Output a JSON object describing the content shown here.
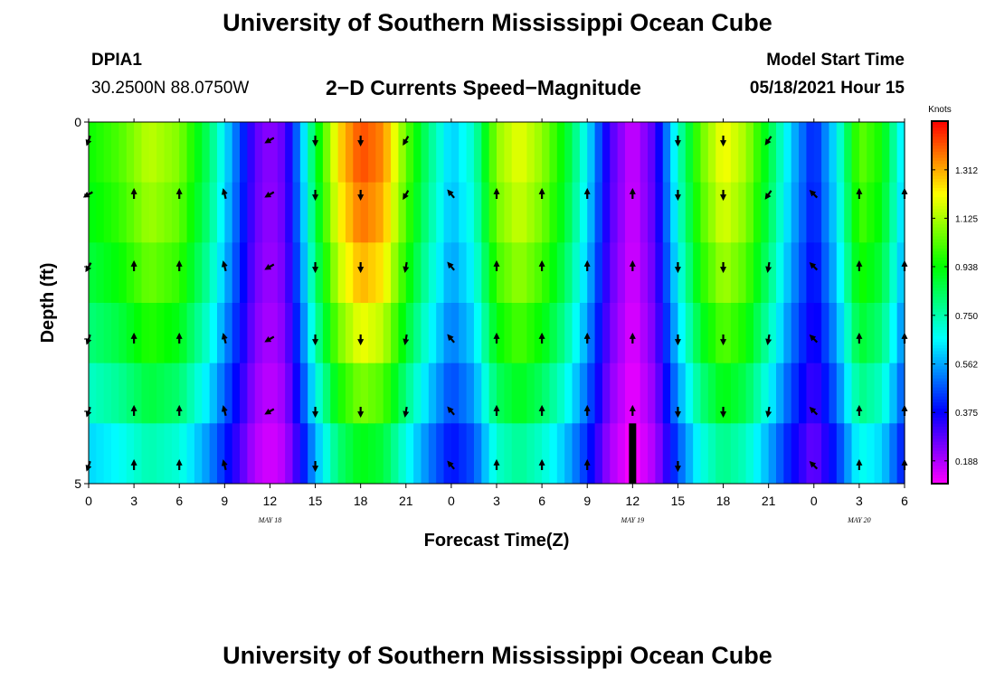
{
  "header": {
    "title": "University of Southern Mississippi Ocean Cube",
    "station": "DPIA1",
    "coords": "30.2500N  88.0750W",
    "subtitle": "2−D Currents Speed−Magnitude",
    "start_label": "Model Start Time",
    "start_value": "05/18/2021 Hour 15"
  },
  "footer": {
    "title": "University of Southern Mississippi Ocean Cube"
  },
  "chart_data": {
    "type": "heatmap",
    "title": "2-D Currents Speed-Magnitude",
    "xlabel": "Forecast Time(Z)",
    "ylabel": "Depth (ft)",
    "x_hours": [
      0,
      3,
      6,
      9,
      12,
      15,
      18,
      21,
      24,
      27,
      30,
      33,
      36,
      39,
      42,
      45,
      48,
      51,
      54
    ],
    "x_tick_labels": [
      "0",
      "3",
      "6",
      "9",
      "12",
      "15",
      "18",
      "21",
      "0",
      "3",
      "6",
      "9",
      "12",
      "15",
      "18",
      "21",
      "0",
      "3",
      "6"
    ],
    "x_range": [
      0,
      54
    ],
    "date_labels": [
      {
        "text": "MAY 18",
        "hour": 12
      },
      {
        "text": "MAY 19",
        "hour": 36
      },
      {
        "text": "MAY 20",
        "hour": 51
      }
    ],
    "y_range": [
      0,
      5
    ],
    "y_tick_labels": [
      {
        "value": 0,
        "label": "0"
      },
      {
        "value": 5,
        "label": "5"
      }
    ],
    "depth_levels": [
      0.25,
      1.0,
      2.0,
      3.0,
      4.0,
      4.75
    ],
    "model_start_marker_hour": 36,
    "colorbar": {
      "unit": "Knots",
      "min": 0.1,
      "max": 1.5,
      "tick_values": [
        1.312,
        1.125,
        0.938,
        0.75,
        0.562,
        0.375,
        0.188
      ],
      "tick_labels": [
        "1.312",
        "1.125",
        "0.938",
        "0.750",
        "0.562",
        "0.375",
        "0.188"
      ]
    },
    "speed_profile_knots": [
      {
        "hour": 0,
        "speed": 0.95
      },
      {
        "hour": 2,
        "speed": 1.02
      },
      {
        "hour": 4,
        "speed": 1.15
      },
      {
        "hour": 6,
        "speed": 1.08
      },
      {
        "hour": 8,
        "speed": 0.82
      },
      {
        "hour": 9.5,
        "speed": 0.55
      },
      {
        "hour": 11,
        "speed": 0.28
      },
      {
        "hour": 12,
        "speed": 0.22
      },
      {
        "hour": 13,
        "speed": 0.28
      },
      {
        "hour": 14,
        "speed": 0.55
      },
      {
        "hour": 15,
        "speed": 0.88
      },
      {
        "hour": 16.5,
        "speed": 1.25
      },
      {
        "hour": 18,
        "speed": 1.42
      },
      {
        "hour": 19.5,
        "speed": 1.35
      },
      {
        "hour": 21,
        "speed": 1.05
      },
      {
        "hour": 22.5,
        "speed": 0.8
      },
      {
        "hour": 24,
        "speed": 0.6
      },
      {
        "hour": 25.5,
        "speed": 0.72
      },
      {
        "hour": 27,
        "speed": 1.1
      },
      {
        "hour": 28.5,
        "speed": 1.2
      },
      {
        "hour": 30,
        "speed": 1.1
      },
      {
        "hour": 31.5,
        "speed": 0.92
      },
      {
        "hour": 33,
        "speed": 0.65
      },
      {
        "hour": 34.5,
        "speed": 0.3
      },
      {
        "hour": 36,
        "speed": 0.15
      },
      {
        "hour": 37.5,
        "speed": 0.3
      },
      {
        "hour": 39,
        "speed": 0.72
      },
      {
        "hour": 40.5,
        "speed": 1.05
      },
      {
        "hour": 42,
        "speed": 1.22
      },
      {
        "hour": 43.5,
        "speed": 1.12
      },
      {
        "hour": 45,
        "speed": 0.88
      },
      {
        "hour": 46.5,
        "speed": 0.6
      },
      {
        "hour": 48,
        "speed": 0.4
      },
      {
        "hour": 49.5,
        "speed": 0.65
      },
      {
        "hour": 51,
        "speed": 1.05
      },
      {
        "hour": 52.5,
        "speed": 0.95
      },
      {
        "hour": 54,
        "speed": 0.6
      }
    ],
    "depth_factors": [
      1.0,
      0.97,
      0.92,
      0.85,
      0.76,
      0.65
    ],
    "arrows": [
      {
        "hour": 0,
        "dirs": [
          200,
          240,
          210,
          200,
          200,
          200
        ]
      },
      {
        "hour": 3,
        "dirs": [
          null,
          0,
          0,
          0,
          0,
          0
        ]
      },
      {
        "hour": 6,
        "dirs": [
          null,
          0,
          0,
          0,
          0,
          0
        ]
      },
      {
        "hour": 9,
        "dirs": [
          null,
          345,
          345,
          345,
          345,
          345
        ]
      },
      {
        "hour": 12,
        "dirs": [
          240,
          240,
          240,
          240,
          240,
          null
        ]
      },
      {
        "hour": 15,
        "dirs": [
          180,
          180,
          180,
          180,
          180,
          180
        ]
      },
      {
        "hour": 18,
        "dirs": [
          180,
          180,
          180,
          180,
          180,
          null
        ]
      },
      {
        "hour": 21,
        "dirs": [
          210,
          210,
          190,
          190,
          190,
          null
        ]
      },
      {
        "hour": 24,
        "dirs": [
          null,
          320,
          320,
          320,
          320,
          320
        ]
      },
      {
        "hour": 27,
        "dirs": [
          null,
          0,
          0,
          0,
          0,
          0
        ]
      },
      {
        "hour": 30,
        "dirs": [
          null,
          0,
          0,
          0,
          0,
          0
        ]
      },
      {
        "hour": 33,
        "dirs": [
          null,
          0,
          0,
          0,
          0,
          0
        ]
      },
      {
        "hour": 36,
        "dirs": [
          null,
          0,
          0,
          0,
          0,
          null
        ]
      },
      {
        "hour": 39,
        "dirs": [
          180,
          180,
          180,
          180,
          180,
          180
        ]
      },
      {
        "hour": 42,
        "dirs": [
          180,
          180,
          180,
          180,
          180,
          null
        ]
      },
      {
        "hour": 45,
        "dirs": [
          215,
          215,
          190,
          190,
          190,
          null
        ]
      },
      {
        "hour": 48,
        "dirs": [
          null,
          315,
          315,
          315,
          315,
          315
        ]
      },
      {
        "hour": 51,
        "dirs": [
          null,
          0,
          0,
          0,
          0,
          0
        ]
      },
      {
        "hour": 54,
        "dirs": [
          null,
          0,
          0,
          0,
          0,
          0
        ]
      }
    ]
  }
}
